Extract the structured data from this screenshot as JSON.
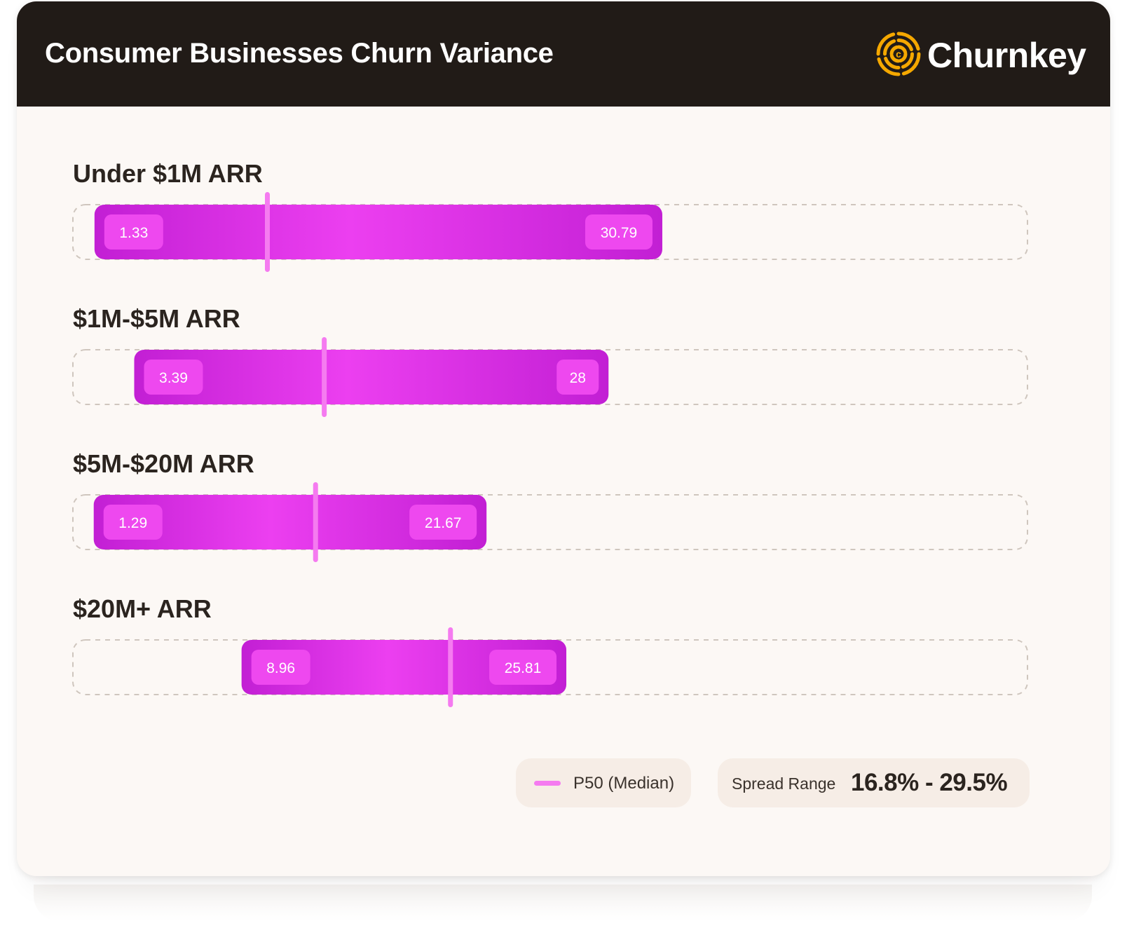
{
  "header": {
    "title": "Consumer Businesses Churn Variance",
    "brand": "Churnkey",
    "logo_icon": "churnkey-target-icon"
  },
  "colors": {
    "header_bg": "#211b17",
    "card_bg": "#fcf8f5",
    "bar_dark": "#c21fd4",
    "bar_light": "#ec3ff0",
    "median": "#f57bf0",
    "logo": "#f5a800"
  },
  "chart_data": {
    "type": "bar",
    "orientation": "horizontal-range",
    "title": "Consumer Businesses Churn Variance",
    "xlim": [
      0,
      50
    ],
    "grid": false,
    "legend_placement": "bottom-right",
    "series": [
      {
        "name": "Under $1M ARR",
        "min": 1.33,
        "max": 30.79,
        "median": 10.3
      },
      {
        "name": "$1M-$5M ARR",
        "min": 3.39,
        "max": 28,
        "median": 13.25
      },
      {
        "name": "$5M-$20M ARR",
        "min": 1.29,
        "max": 21.67,
        "median": 12.8
      },
      {
        "name": "$20M+ ARR",
        "min": 8.96,
        "max": 25.81,
        "median": 19.8
      }
    ]
  },
  "legend": {
    "median_label": "P50 (Median)",
    "spread_label": "Spread Range",
    "spread_value": "16.8% - 29.5%"
  }
}
